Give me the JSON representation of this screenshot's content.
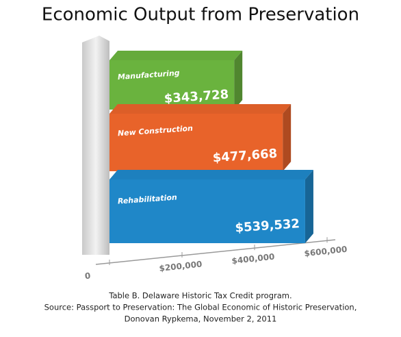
{
  "chart_data": {
    "type": "bar",
    "orientation": "horizontal",
    "title": "Economic Output from Preservation",
    "categories": [
      "Manufacturing",
      "New Construction",
      "Rehabilitation"
    ],
    "values": [
      343728,
      477668,
      539532
    ],
    "value_labels": [
      "$343,728",
      "$477,668",
      "$539,532"
    ],
    "colors": [
      "#6ab33e",
      "#e8632a",
      "#1f87c8"
    ],
    "xlim": [
      0,
      600000
    ],
    "xticks": [
      0,
      {
        "value": 200000,
        "label": "$200,000"
      },
      {
        "value": 400000,
        "label": "$400,000"
      },
      {
        "value": 600000,
        "label": "$600,000"
      }
    ],
    "caption": [
      "Table B. Delaware Historic Tax Credit program.",
      "Source: Passport to Preservation: The Global Economic of Historic Preservation,",
      "Donovan Rypkema, November 2, 2011"
    ]
  }
}
